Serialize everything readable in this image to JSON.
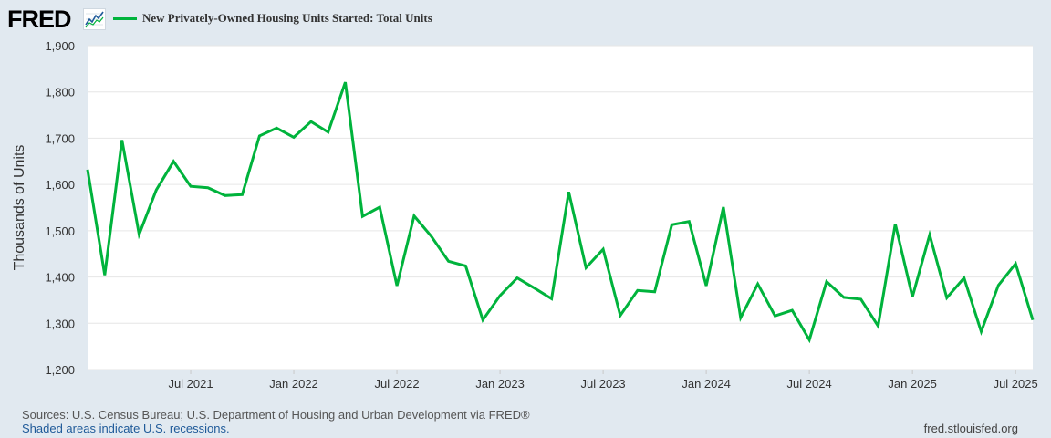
{
  "header": {
    "logo_text": "FRED",
    "logo_icon": "line-graph-icon",
    "legend_label": "New Privately-Owned Housing Units Started: Total Units"
  },
  "footer": {
    "source": "Sources: U.S. Census Bureau; U.S. Department of Housing and Urban Development via FRED®",
    "recession_note": "Shaded areas indicate U.S. recessions.",
    "site_url": "fred.stlouisfed.org"
  },
  "colors": {
    "background": "#e1e9f0",
    "plot_background": "#ffffff",
    "series": "#00b33c",
    "grid": "#e6e6e6",
    "axis_text": "#333333"
  },
  "chart_data": {
    "type": "line",
    "title": "",
    "xlabel": "",
    "ylabel": "Thousands of Units",
    "ylim": [
      1200,
      1900
    ],
    "y_ticks": [
      1200,
      1300,
      1400,
      1500,
      1600,
      1700,
      1800,
      1900
    ],
    "y_tick_labels": [
      "1,200",
      "1,300",
      "1,400",
      "1,500",
      "1,600",
      "1,700",
      "1,800",
      "1,900"
    ],
    "x_start": "2021-01",
    "x_end": "2025-08",
    "x_tick_labels": [
      {
        "date": "2021-07",
        "label": "Jul 2021"
      },
      {
        "date": "2022-01",
        "label": "Jan 2022"
      },
      {
        "date": "2022-07",
        "label": "Jul 2022"
      },
      {
        "date": "2023-01",
        "label": "Jan 2023"
      },
      {
        "date": "2023-07",
        "label": "Jul 2023"
      },
      {
        "date": "2024-01",
        "label": "Jan 2024"
      },
      {
        "date": "2024-07",
        "label": "Jul 2024"
      },
      {
        "date": "2025-01",
        "label": "Jan 2025"
      },
      {
        "date": "2025-07",
        "label": "Jul 2025"
      }
    ],
    "grid": true,
    "legend": "top-left",
    "series": [
      {
        "name": "New Privately-Owned Housing Units Started: Total Units",
        "color": "#00b33c",
        "points": [
          {
            "x": "2021-01",
            "y": 1632
          },
          {
            "x": "2021-02",
            "y": 1404
          },
          {
            "x": "2021-03",
            "y": 1696
          },
          {
            "x": "2021-04",
            "y": 1492
          },
          {
            "x": "2021-05",
            "y": 1588
          },
          {
            "x": "2021-06",
            "y": 1650
          },
          {
            "x": "2021-07",
            "y": 1596
          },
          {
            "x": "2021-08",
            "y": 1593
          },
          {
            "x": "2021-09",
            "y": 1576
          },
          {
            "x": "2021-10",
            "y": 1578
          },
          {
            "x": "2021-11",
            "y": 1705
          },
          {
            "x": "2021-12",
            "y": 1722
          },
          {
            "x": "2022-01",
            "y": 1702
          },
          {
            "x": "2022-02",
            "y": 1736
          },
          {
            "x": "2022-03",
            "y": 1713
          },
          {
            "x": "2022-04",
            "y": 1821
          },
          {
            "x": "2022-05",
            "y": 1531
          },
          {
            "x": "2022-06",
            "y": 1551
          },
          {
            "x": "2022-07",
            "y": 1381
          },
          {
            "x": "2022-08",
            "y": 1532
          },
          {
            "x": "2022-09",
            "y": 1488
          },
          {
            "x": "2022-10",
            "y": 1434
          },
          {
            "x": "2022-11",
            "y": 1424
          },
          {
            "x": "2022-12",
            "y": 1307
          },
          {
            "x": "2023-01",
            "y": 1360
          },
          {
            "x": "2023-02",
            "y": 1398
          },
          {
            "x": "2023-03",
            "y": 1376
          },
          {
            "x": "2023-04",
            "y": 1353
          },
          {
            "x": "2023-05",
            "y": 1584
          },
          {
            "x": "2023-06",
            "y": 1420
          },
          {
            "x": "2023-07",
            "y": 1460
          },
          {
            "x": "2023-08",
            "y": 1317
          },
          {
            "x": "2023-09",
            "y": 1371
          },
          {
            "x": "2023-10",
            "y": 1368
          },
          {
            "x": "2023-11",
            "y": 1513
          },
          {
            "x": "2023-12",
            "y": 1520
          },
          {
            "x": "2024-01",
            "y": 1381
          },
          {
            "x": "2024-02",
            "y": 1551
          },
          {
            "x": "2024-03",
            "y": 1312
          },
          {
            "x": "2024-04",
            "y": 1385
          },
          {
            "x": "2024-05",
            "y": 1316
          },
          {
            "x": "2024-06",
            "y": 1328
          },
          {
            "x": "2024-07",
            "y": 1264
          },
          {
            "x": "2024-08",
            "y": 1390
          },
          {
            "x": "2024-09",
            "y": 1356
          },
          {
            "x": "2024-10",
            "y": 1352
          },
          {
            "x": "2024-11",
            "y": 1294
          },
          {
            "x": "2024-12",
            "y": 1515
          },
          {
            "x": "2025-01",
            "y": 1357
          },
          {
            "x": "2025-02",
            "y": 1491
          },
          {
            "x": "2025-03",
            "y": 1355
          },
          {
            "x": "2025-04",
            "y": 1398
          },
          {
            "x": "2025-05",
            "y": 1282
          },
          {
            "x": "2025-06",
            "y": 1382
          },
          {
            "x": "2025-07",
            "y": 1429
          },
          {
            "x": "2025-08",
            "y": 1307
          }
        ]
      }
    ]
  }
}
